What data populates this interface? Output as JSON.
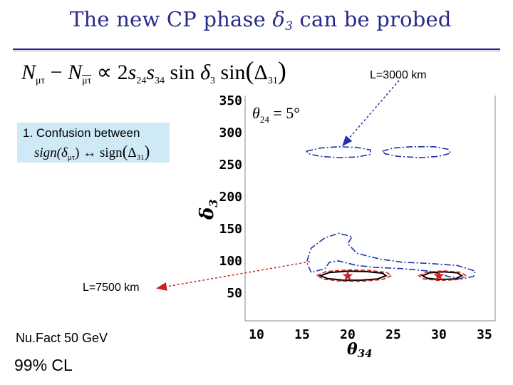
{
  "slide": {
    "title_text": "The new CP phase ",
    "title_delta": "δ",
    "title_sub": "3",
    "title_rest": " can be probed",
    "formula": {
      "n1": "N",
      "n1_sub": "μτ",
      "minus": " − ",
      "n2": "N",
      "n2_sub": "μτ",
      "rest1": " ∝ 2",
      "s24": "s",
      "s24_sub": "24",
      "s34": "s",
      "s34_sub": "34",
      "sin1": " sin ",
      "d3": "δ",
      "d3_sub": "3",
      "sin2": " sin",
      "lp": "(",
      "delta31": "Δ",
      "delta31_sub": "31",
      "rp": ")"
    },
    "callout": {
      "line1": "1. Confusion between",
      "sign1": "sign(δ",
      "sign1_sub": "μτ",
      "arrow": ") ↔ sign",
      "lp": "(",
      "delta31": "Δ",
      "delta31_sub": "31",
      "rp": ")"
    },
    "label_l3000": "L=3000 km",
    "label_l7500": "L=7500 km",
    "nufact": "Nu.Fact 50 GeV",
    "cl": "99% CL"
  },
  "colors": {
    "title": "#2a2a8a",
    "callout_bg": "#cfe9f6",
    "l3000": "#2233aa",
    "l7500": "#cc2222",
    "curve_black": "#000000",
    "curve_red": "#cc2222",
    "curve_blue": "#2233aa",
    "star": "#cc2222"
  },
  "chart_data": {
    "type": "contour",
    "xlabel": "θ",
    "xlabel_sub": "34",
    "ylabel": "δ",
    "ylabel_sub": "3",
    "xlim": [
      10,
      35
    ],
    "ylim": [
      50,
      350
    ],
    "x_ticks": [
      10,
      15,
      20,
      25,
      30,
      35
    ],
    "y_ticks": [
      50,
      100,
      150,
      200,
      250,
      300,
      350
    ],
    "annotation": "θ",
    "annotation_sub": "24",
    "annotation_rest": " = 5°",
    "true_points": [
      {
        "x": 20,
        "y": 77
      },
      {
        "x": 30,
        "y": 77
      }
    ],
    "series": [
      {
        "name": "L=3000 km",
        "style": "dash-dot",
        "color": "#2233aa",
        "contours": [
          [
            [
              15.5,
              271
            ],
            [
              17,
              276
            ],
            [
              19,
              278
            ],
            [
              21,
              277
            ],
            [
              22.5,
              273
            ],
            [
              22.5,
              266
            ],
            [
              21,
              262
            ],
            [
              19,
              261
            ],
            [
              17,
              263
            ],
            [
              15.7,
              267
            ],
            [
              15.5,
              271
            ]
          ],
          [
            [
              23.8,
              271
            ],
            [
              25,
              276
            ],
            [
              27,
              278
            ],
            [
              29.5,
              278
            ],
            [
              31,
              274
            ],
            [
              31.3,
              268
            ],
            [
              30,
              263
            ],
            [
              28,
              261
            ],
            [
              25.5,
              263
            ],
            [
              24.1,
              267
            ],
            [
              23.8,
              271
            ]
          ],
          [
            [
              16,
              82
            ],
            [
              15.5,
              98
            ],
            [
              16,
              120
            ],
            [
              17.5,
              136
            ],
            [
              19,
              143
            ],
            [
              20.5,
              138
            ],
            [
              20,
              127
            ],
            [
              21,
              112
            ],
            [
              23.5,
              103
            ],
            [
              26,
              98
            ],
            [
              29,
              96
            ],
            [
              32,
              93
            ],
            [
              34,
              84
            ],
            [
              33.8,
              76
            ],
            [
              32.5,
              72
            ],
            [
              31,
              76
            ],
            [
              29,
              84
            ],
            [
              26,
              88
            ],
            [
              23,
              90
            ],
            [
              21,
              93
            ],
            [
              19,
              100
            ],
            [
              18,
              98
            ],
            [
              17.5,
              88
            ],
            [
              16,
              82
            ]
          ]
        ]
      },
      {
        "name": "L=7500 km",
        "style": "solid",
        "color": "#000000",
        "contours": [
          [
            [
              17,
              77
            ],
            [
              18,
              82
            ],
            [
              20,
              84
            ],
            [
              22,
              83.5
            ],
            [
              23.8,
              81
            ],
            [
              24.2,
              77
            ],
            [
              23.3,
              72
            ],
            [
              21.5,
              70
            ],
            [
              19.5,
              70
            ],
            [
              17.8,
              72.5
            ],
            [
              17,
              77
            ]
          ],
          [
            [
              28.2,
              77
            ],
            [
              29,
              81.5
            ],
            [
              30.5,
              83
            ],
            [
              32,
              81.5
            ],
            [
              32.5,
              77
            ],
            [
              31.8,
              72
            ],
            [
              30,
              71
            ],
            [
              28.7,
              73
            ],
            [
              28.2,
              77
            ]
          ]
        ]
      },
      {
        "name": "L=7500 km",
        "style": "dashed",
        "color": "#cc2222",
        "contours": [
          [
            [
              16.6,
              77
            ],
            [
              17.6,
              83.5
            ],
            [
              20,
              86
            ],
            [
              22.3,
              85.5
            ],
            [
              24.3,
              82
            ],
            [
              24.8,
              77
            ],
            [
              23.8,
              71
            ],
            [
              21.6,
              68.5
            ],
            [
              19.3,
              68.5
            ],
            [
              17.4,
              71.5
            ],
            [
              16.6,
              77
            ]
          ],
          [
            [
              27.8,
              77
            ],
            [
              28.6,
              82.5
            ],
            [
              30.5,
              84.5
            ],
            [
              32.3,
              82.5
            ],
            [
              33,
              77
            ],
            [
              32.2,
              71
            ],
            [
              30,
              69.5
            ],
            [
              28.3,
              72
            ],
            [
              27.8,
              77
            ]
          ]
        ]
      }
    ]
  }
}
